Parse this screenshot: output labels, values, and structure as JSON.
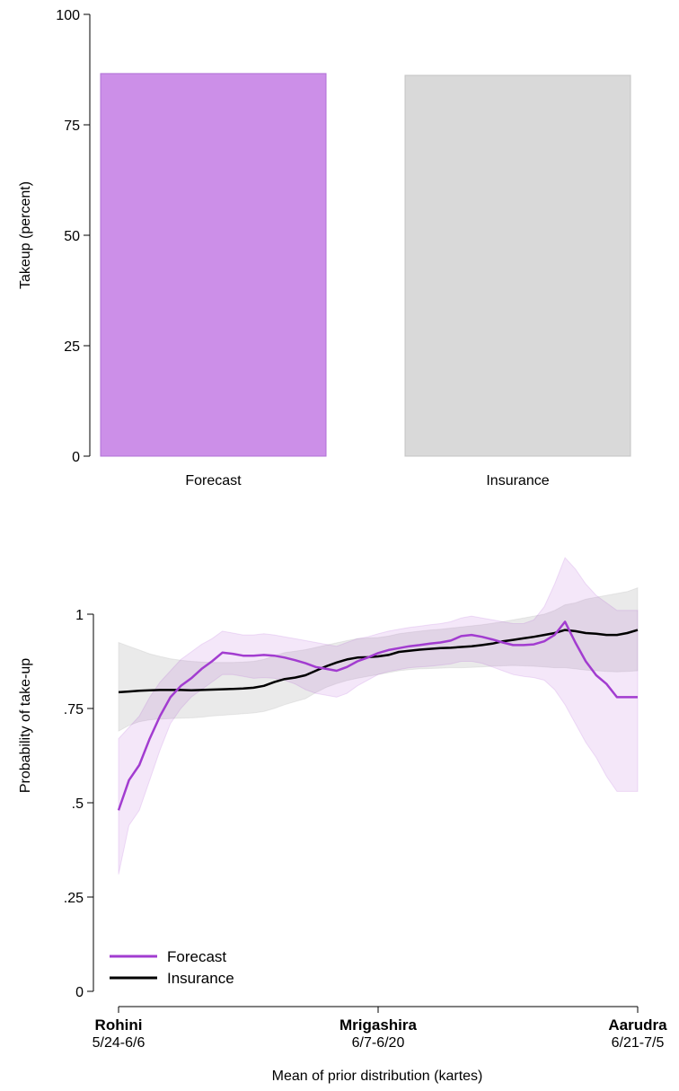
{
  "chart_data": [
    {
      "type": "bar",
      "categories": [
        "Forecast",
        "Insurance"
      ],
      "values": [
        86.6,
        86.2
      ],
      "colors": [
        "#cc8fe8",
        "#d9d9d9"
      ],
      "edge_colors": [
        "#b070d6",
        "#c4c4c4"
      ],
      "xlabel": "",
      "ylabel": "Takeup (percent)",
      "ylim": [
        0,
        100
      ],
      "yticks": [
        0,
        25,
        50,
        75,
        100
      ],
      "ytick_labels": [
        "0",
        "25",
        "50",
        "75",
        "100"
      ],
      "grid": false
    },
    {
      "type": "line",
      "xlabel": "Mean of prior distribution (kartes)",
      "ylabel": "Probability of take-up",
      "xlim": [
        0,
        1
      ],
      "ylim": [
        0,
        1
      ],
      "yticks": [
        0,
        0.25,
        0.5,
        0.75,
        1
      ],
      "ytick_labels": [
        "0",
        ".25",
        ".5",
        ".75",
        "1"
      ],
      "xticks": [
        {
          "x": 0,
          "name": "Rohini",
          "dates": "5/24-6/6"
        },
        {
          "x": 0.5,
          "name": "Mrigashira",
          "dates": "6/7-6/20"
        },
        {
          "x": 1,
          "name": "Aarudra",
          "dates": "6/21-7/5"
        }
      ],
      "legend_position": "bottom-left",
      "grid": false,
      "series": [
        {
          "name": "Forecast",
          "color": "#a23cd0",
          "band_color": "#a23cd0",
          "x": [
            0,
            0.02,
            0.04,
            0.06,
            0.08,
            0.1,
            0.12,
            0.14,
            0.16,
            0.18,
            0.2,
            0.22,
            0.24,
            0.26,
            0.28,
            0.3,
            0.32,
            0.34,
            0.36,
            0.38,
            0.4,
            0.42,
            0.44,
            0.46,
            0.48,
            0.5,
            0.52,
            0.54,
            0.56,
            0.58,
            0.6,
            0.62,
            0.64,
            0.66,
            0.68,
            0.7,
            0.72,
            0.74,
            0.76,
            0.78,
            0.8,
            0.82,
            0.84,
            0.86,
            0.88,
            0.9,
            0.92,
            0.94,
            0.96,
            0.98,
            1.0
          ],
          "y": [
            0.48,
            0.56,
            0.6,
            0.67,
            0.73,
            0.78,
            0.81,
            0.83,
            0.855,
            0.875,
            0.898,
            0.895,
            0.89,
            0.89,
            0.892,
            0.89,
            0.885,
            0.878,
            0.87,
            0.86,
            0.855,
            0.85,
            0.86,
            0.875,
            0.885,
            0.897,
            0.905,
            0.91,
            0.915,
            0.918,
            0.922,
            0.925,
            0.93,
            0.942,
            0.945,
            0.94,
            0.933,
            0.925,
            0.918,
            0.918,
            0.92,
            0.928,
            0.945,
            0.98,
            0.925,
            0.875,
            0.838,
            0.815,
            0.78,
            0.78,
            0.78
          ],
          "lower": [
            0.31,
            0.44,
            0.48,
            0.56,
            0.64,
            0.71,
            0.75,
            0.78,
            0.8,
            0.82,
            0.84,
            0.84,
            0.835,
            0.83,
            0.832,
            0.83,
            0.825,
            0.815,
            0.8,
            0.79,
            0.785,
            0.78,
            0.79,
            0.81,
            0.825,
            0.84,
            0.848,
            0.853,
            0.858,
            0.86,
            0.862,
            0.865,
            0.868,
            0.875,
            0.875,
            0.87,
            0.86,
            0.85,
            0.84,
            0.835,
            0.832,
            0.825,
            0.8,
            0.76,
            0.71,
            0.66,
            0.62,
            0.57,
            0.53,
            0.53,
            0.53
          ],
          "upper": [
            0.67,
            0.7,
            0.73,
            0.78,
            0.82,
            0.85,
            0.88,
            0.9,
            0.92,
            0.935,
            0.955,
            0.95,
            0.945,
            0.945,
            0.948,
            0.945,
            0.94,
            0.935,
            0.93,
            0.925,
            0.92,
            0.915,
            0.925,
            0.935,
            0.94,
            0.948,
            0.955,
            0.96,
            0.965,
            0.968,
            0.972,
            0.975,
            0.98,
            0.99,
            0.995,
            0.99,
            0.985,
            0.98,
            0.975,
            0.975,
            0.985,
            1.02,
            1.08,
            1.15,
            1.12,
            1.08,
            1.05,
            1.03,
            1.01,
            1.01,
            1.01
          ]
        },
        {
          "name": "Insurance",
          "color": "#000000",
          "band_color": "#8c8c8c",
          "x": [
            0,
            0.02,
            0.04,
            0.06,
            0.08,
            0.1,
            0.12,
            0.14,
            0.16,
            0.18,
            0.2,
            0.22,
            0.24,
            0.26,
            0.28,
            0.3,
            0.32,
            0.34,
            0.36,
            0.38,
            0.4,
            0.42,
            0.44,
            0.46,
            0.48,
            0.5,
            0.52,
            0.54,
            0.56,
            0.58,
            0.6,
            0.62,
            0.64,
            0.66,
            0.68,
            0.7,
            0.72,
            0.74,
            0.76,
            0.78,
            0.8,
            0.82,
            0.84,
            0.86,
            0.88,
            0.9,
            0.92,
            0.94,
            0.96,
            0.98,
            1.0
          ],
          "y": [
            0.793,
            0.795,
            0.797,
            0.798,
            0.799,
            0.799,
            0.799,
            0.798,
            0.799,
            0.8,
            0.801,
            0.802,
            0.803,
            0.805,
            0.81,
            0.82,
            0.828,
            0.832,
            0.838,
            0.85,
            0.862,
            0.872,
            0.88,
            0.885,
            0.886,
            0.888,
            0.892,
            0.9,
            0.903,
            0.906,
            0.908,
            0.91,
            0.911,
            0.913,
            0.915,
            0.918,
            0.922,
            0.928,
            0.932,
            0.936,
            0.94,
            0.945,
            0.95,
            0.958,
            0.955,
            0.95,
            0.948,
            0.945,
            0.945,
            0.95,
            0.958
          ],
          "lower": [
            0.69,
            0.705,
            0.715,
            0.72,
            0.722,
            0.723,
            0.724,
            0.725,
            0.727,
            0.73,
            0.732,
            0.734,
            0.736,
            0.738,
            0.742,
            0.75,
            0.76,
            0.768,
            0.776,
            0.792,
            0.806,
            0.816,
            0.824,
            0.83,
            0.835,
            0.84,
            0.845,
            0.85,
            0.853,
            0.855,
            0.856,
            0.857,
            0.858,
            0.858,
            0.859,
            0.86,
            0.862,
            0.863,
            0.864,
            0.863,
            0.862,
            0.86,
            0.858,
            0.858,
            0.855,
            0.852,
            0.85,
            0.848,
            0.847,
            0.848,
            0.85
          ],
          "upper": [
            0.925,
            0.915,
            0.905,
            0.895,
            0.888,
            0.882,
            0.878,
            0.875,
            0.873,
            0.872,
            0.872,
            0.872,
            0.873,
            0.875,
            0.88,
            0.89,
            0.898,
            0.902,
            0.906,
            0.912,
            0.918,
            0.924,
            0.93,
            0.935,
            0.937,
            0.938,
            0.942,
            0.948,
            0.952,
            0.955,
            0.958,
            0.96,
            0.963,
            0.966,
            0.969,
            0.972,
            0.976,
            0.98,
            0.985,
            0.99,
            0.995,
            1.0,
            1.01,
            1.025,
            1.03,
            1.04,
            1.045,
            1.05,
            1.055,
            1.06,
            1.07
          ]
        }
      ]
    }
  ]
}
